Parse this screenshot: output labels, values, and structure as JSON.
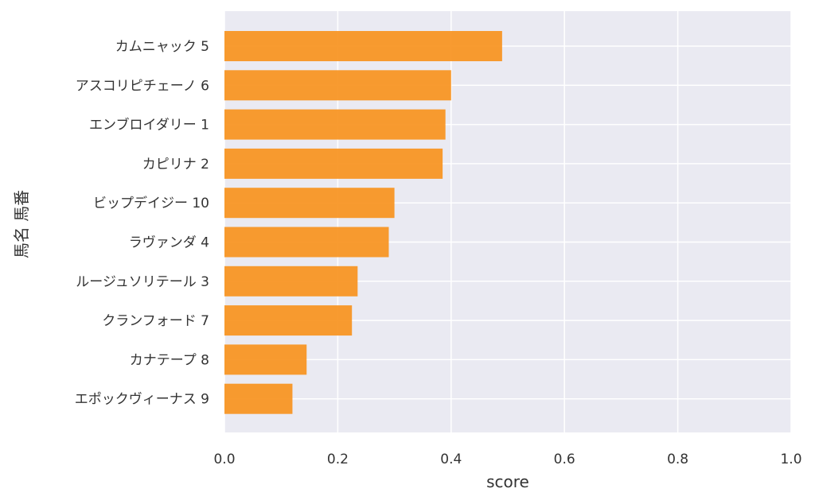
{
  "chart_data": {
    "type": "bar",
    "orientation": "horizontal",
    "xlabel": "score",
    "ylabel": "馬名 馬番",
    "xlim": [
      0.0,
      1.0
    ],
    "xticks": [
      "0.0",
      "0.2",
      "0.4",
      "0.6",
      "0.8",
      "1.0"
    ],
    "grid": true,
    "categories": [
      "カムニャック 5",
      "アスコリピチェーノ 6",
      "エンブロイダリー 1",
      "カピリナ 2",
      "ビップデイジー 10",
      "ラヴァンダ 4",
      "ルージュソリテール 3",
      "クランフォード 7",
      "カナテープ 8",
      "エポックヴィーナス 9"
    ],
    "values": [
      0.49,
      0.4,
      0.39,
      0.385,
      0.3,
      0.29,
      0.235,
      0.225,
      0.145,
      0.12
    ],
    "colors": {
      "bar": "#f7931e",
      "plot_background": "#eaeaf2",
      "grid": "#ffffff",
      "text": "#333333"
    }
  }
}
